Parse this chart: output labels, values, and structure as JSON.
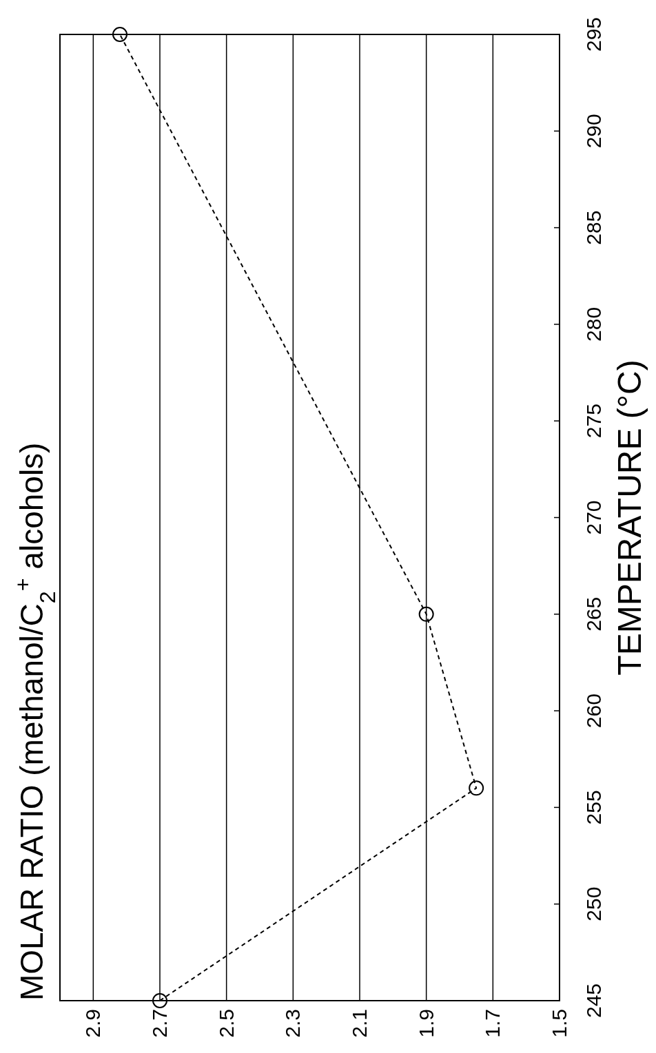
{
  "chart_data": {
    "type": "line",
    "title": "MOLAR RATIO (methanol/C$_{2}$$^{+}$ alcohols)",
    "ylabel": "TEMPERATURE (°C)",
    "x": [
      2.7,
      1.75,
      1.9,
      2.82
    ],
    "series": [
      {
        "color": "#000000",
        "values": [
          245,
          256,
          265,
          295
        ]
      }
    ],
    "xlim": [
      3.0,
      1.5
    ],
    "xticks": [
      2.9,
      2.7,
      2.5,
      2.3,
      2.1,
      1.9,
      1.7,
      1.5
    ],
    "ylim": [
      245,
      295
    ],
    "yticks": [
      245,
      250,
      255,
      260,
      265,
      270,
      275,
      280,
      285,
      290,
      295
    ],
    "grid": "x",
    "marker": "circle",
    "line_style": "dashed"
  }
}
